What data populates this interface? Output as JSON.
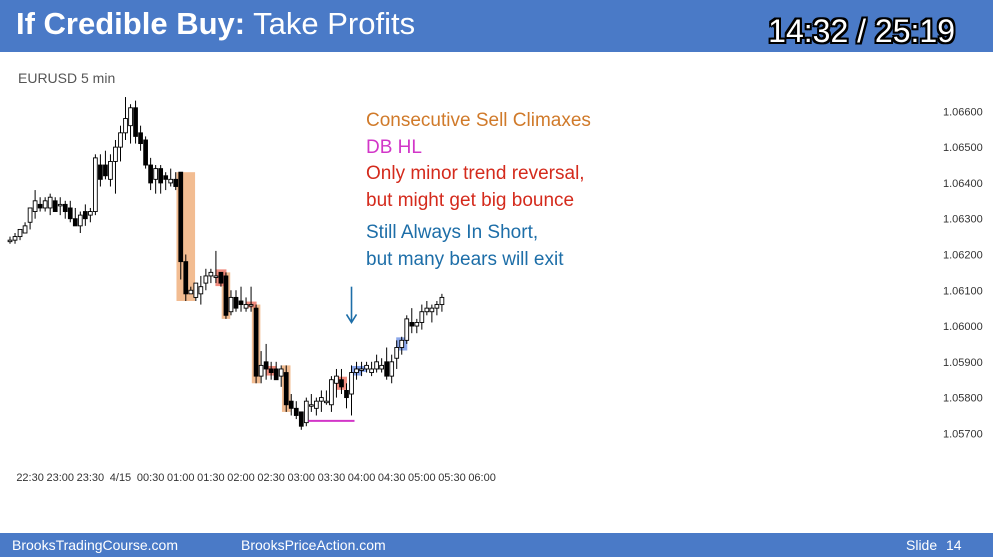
{
  "slide": {
    "title_bold": "If Credible Buy:",
    "title_rest": " Take Profits",
    "timer": "14:32 / 25:19",
    "symbol_label": "EURUSD 5 min"
  },
  "annotations": {
    "line1": "Consecutive Sell Climaxes",
    "line2": "DB HL",
    "line3": "Only minor trend reversal,",
    "line4": "but might get big bounce",
    "line5": "Still Always In Short,",
    "line6": "but many bears will exit"
  },
  "colors": {
    "orange_text": "#d07a2a",
    "magenta_text": "#d236c8",
    "red_text": "#d42a1c",
    "blue_text": "#1d6ea8",
    "climax_highlight": "#f0b07e",
    "sell_signal": "#f08070",
    "buy_signal": "#7f9ee8",
    "arrow": "#1d6ea8",
    "header": "#4a7ac7"
  },
  "footer": {
    "left": "BrooksTradingCourse.com",
    "center": "BrooksPriceAction.com",
    "slide_label": "Slide",
    "slide_number": "14"
  },
  "chart_data": {
    "type": "candlestick",
    "symbol": "EURUSD",
    "timeframe": "5 min",
    "x_tick_labels": [
      "22:30",
      "23:00",
      "23:30",
      "4/15",
      "00:30",
      "01:00",
      "01:30",
      "02:00",
      "02:30",
      "03:00",
      "03:30",
      "04:00",
      "04:30",
      "05:00",
      "05:30",
      "06:00"
    ],
    "y_tick_labels": [
      "1.06600",
      "1.06500",
      "1.06400",
      "1.06300",
      "1.06200",
      "1.06100",
      "1.06000",
      "1.05900",
      "1.05800",
      "1.05700"
    ],
    "y_ticks": [
      1.066,
      1.065,
      1.064,
      1.063,
      1.062,
      1.061,
      1.06,
      1.059,
      1.058,
      1.057
    ],
    "ylim": [
      1.0562,
      1.0671
    ],
    "x_range_bars": [
      0,
      180
    ],
    "bars_per_tick": 6,
    "bars": [
      [
        1.0624,
        1.0625,
        1.0623,
        1.0624
      ],
      [
        1.0624,
        1.0626,
        1.0623,
        1.0625
      ],
      [
        1.0625,
        1.0627,
        1.0624,
        1.0627
      ],
      [
        1.0626,
        1.0629,
        1.0626,
        1.0628
      ],
      [
        1.0629,
        1.0633,
        1.0627,
        1.0633
      ],
      [
        1.0632,
        1.0638,
        1.063,
        1.0635
      ],
      [
        1.0634,
        1.0636,
        1.0632,
        1.0633
      ],
      [
        1.0633,
        1.0636,
        1.0632,
        1.0635
      ],
      [
        1.0633,
        1.0637,
        1.0631,
        1.0636
      ],
      [
        1.0635,
        1.0636,
        1.0632,
        1.0632
      ],
      [
        1.0634,
        1.0636,
        1.0631,
        1.0634
      ],
      [
        1.0634,
        1.0635,
        1.063,
        1.0632
      ],
      [
        1.0633,
        1.0635,
        1.0629,
        1.063
      ],
      [
        1.063,
        1.0633,
        1.0628,
        1.0628
      ],
      [
        1.0628,
        1.0632,
        1.0626,
        1.0631
      ],
      [
        1.0632,
        1.0634,
        1.0628,
        1.063
      ],
      [
        1.0631,
        1.0633,
        1.0629,
        1.0632
      ],
      [
        1.0632,
        1.0648,
        1.0631,
        1.0647
      ],
      [
        1.0645,
        1.0648,
        1.0639,
        1.0641
      ],
      [
        1.0645,
        1.0649,
        1.0641,
        1.0642
      ],
      [
        1.0641,
        1.0648,
        1.0639,
        1.0646
      ],
      [
        1.0646,
        1.0652,
        1.0637,
        1.065
      ],
      [
        1.065,
        1.0656,
        1.0646,
        1.0654
      ],
      [
        1.0654,
        1.0664,
        1.0652,
        1.0658
      ],
      [
        1.0656,
        1.0662,
        1.0651,
        1.0661
      ],
      [
        1.0661,
        1.0663,
        1.0651,
        1.0653
      ],
      [
        1.0654,
        1.0656,
        1.0649,
        1.0651
      ],
      [
        1.0652,
        1.0653,
        1.0644,
        1.0645
      ],
      [
        1.0645,
        1.0647,
        1.0638,
        1.064
      ],
      [
        1.0641,
        1.0645,
        1.0637,
        1.0644
      ],
      [
        1.0644,
        1.0645,
        1.0637,
        1.064
      ],
      [
        1.0642,
        1.0643,
        1.0638,
        1.0641
      ],
      [
        1.064,
        1.0644,
        1.0639,
        1.0641
      ],
      [
        1.0641,
        1.0643,
        1.0638,
        1.0639
      ],
      [
        1.0643,
        1.0643,
        1.0613,
        1.0618
      ],
      [
        1.0618,
        1.062,
        1.0607,
        1.0609
      ],
      [
        1.0609,
        1.0611,
        1.0609,
        1.061
      ],
      [
        1.0608,
        1.0612,
        1.0607,
        1.0612
      ],
      [
        1.0609,
        1.0614,
        1.0606,
        1.0611
      ],
      [
        1.0612,
        1.0616,
        1.061,
        1.0614
      ],
      [
        1.0614,
        1.0616,
        1.0612,
        1.0615
      ],
      [
        1.0614,
        1.0621,
        1.0612,
        1.0614
      ],
      [
        1.0615,
        1.0615,
        1.0611,
        1.0612
      ],
      [
        1.0614,
        1.0615,
        1.0602,
        1.0603
      ],
      [
        1.0604,
        1.061,
        1.0603,
        1.0608
      ],
      [
        1.0608,
        1.061,
        1.0604,
        1.0605
      ],
      [
        1.0607,
        1.0611,
        1.0604,
        1.0606
      ],
      [
        1.0605,
        1.0608,
        1.0604,
        1.0606
      ],
      [
        1.0606,
        1.0611,
        1.0604,
        1.0606
      ],
      [
        1.0605,
        1.0606,
        1.0584,
        1.0586
      ],
      [
        1.0586,
        1.0593,
        1.0584,
        1.0589
      ],
      [
        1.059,
        1.0595,
        1.0585,
        1.0588
      ],
      [
        1.0588,
        1.059,
        1.0585,
        1.0587
      ],
      [
        1.0588,
        1.059,
        1.0585,
        1.0585
      ],
      [
        1.0586,
        1.0589,
        1.0583,
        1.0588
      ],
      [
        1.0587,
        1.0589,
        1.0576,
        1.0578
      ],
      [
        1.0579,
        1.0581,
        1.0575,
        1.0577
      ],
      [
        1.0577,
        1.0579,
        1.0574,
        1.0575
      ],
      [
        1.0576,
        1.0576,
        1.0571,
        1.0572
      ],
      [
        1.0573,
        1.058,
        1.0572,
        1.0579
      ],
      [
        1.0578,
        1.0581,
        1.0576,
        1.0578
      ],
      [
        1.0577,
        1.058,
        1.0575,
        1.0579
      ],
      [
        1.0579,
        1.0582,
        1.0576,
        1.058
      ],
      [
        1.0579,
        1.0582,
        1.0578,
        1.0579
      ],
      [
        1.0578,
        1.0586,
        1.0576,
        1.0585
      ],
      [
        1.0584,
        1.0588,
        1.058,
        1.0586
      ],
      [
        1.0585,
        1.0588,
        1.0581,
        1.0583
      ],
      [
        1.0582,
        1.0584,
        1.0577,
        1.058
      ],
      [
        1.0581,
        1.0589,
        1.0575,
        1.0587
      ],
      [
        1.0587,
        1.059,
        1.0585,
        1.0588
      ],
      [
        1.0588,
        1.059,
        1.0586,
        1.0588
      ],
      [
        1.0588,
        1.059,
        1.0587,
        1.0589
      ],
      [
        1.0587,
        1.059,
        1.0586,
        1.0588
      ],
      [
        1.0588,
        1.0592,
        1.0587,
        1.059
      ],
      [
        1.0588,
        1.0591,
        1.0587,
        1.0589
      ],
      [
        1.059,
        1.0594,
        1.0585,
        1.0586
      ],
      [
        1.0586,
        1.0592,
        1.0584,
        1.059
      ],
      [
        1.0591,
        1.0596,
        1.0588,
        1.0594
      ],
      [
        1.0594,
        1.0597,
        1.0592,
        1.0596
      ],
      [
        1.0596,
        1.0603,
        1.0595,
        1.0602
      ],
      [
        1.0601,
        1.0605,
        1.0598,
        1.06
      ],
      [
        1.06,
        1.0602,
        1.0598,
        1.0601
      ],
      [
        1.0601,
        1.0606,
        1.0599,
        1.0604
      ],
      [
        1.0604,
        1.0607,
        1.0603,
        1.0605
      ],
      [
        1.0604,
        1.0606,
        1.0601,
        1.0605
      ],
      [
        1.0605,
        1.0607,
        1.0603,
        1.0606
      ],
      [
        1.0606,
        1.0609,
        1.0604,
        1.0608
      ]
    ],
    "highlights": [
      {
        "kind": "climax",
        "from_bar": 34,
        "to_bar": 36
      },
      {
        "kind": "climax",
        "from_bar": 43,
        "to_bar": 43
      },
      {
        "kind": "climax",
        "from_bar": 49,
        "to_bar": 49
      },
      {
        "kind": "climax",
        "from_bar": 55,
        "to_bar": 55
      },
      {
        "kind": "sell_signal",
        "bar": 42
      },
      {
        "kind": "sell_signal",
        "bar": 48
      },
      {
        "kind": "sell_signal",
        "bar": 52
      },
      {
        "kind": "sell_signal",
        "bar": 66
      },
      {
        "kind": "buy_signal",
        "bar": 69
      },
      {
        "kind": "buy_signal",
        "bar": 70
      },
      {
        "kind": "buy_signal",
        "bar": 78
      }
    ],
    "double_bottom_line": {
      "from_bar": 60,
      "to_bar": 68,
      "price": 1.05735
    },
    "arrow_bar": 68,
    "arrow_price_top": 1.0611,
    "arrow_price_bottom": 1.0601
  }
}
